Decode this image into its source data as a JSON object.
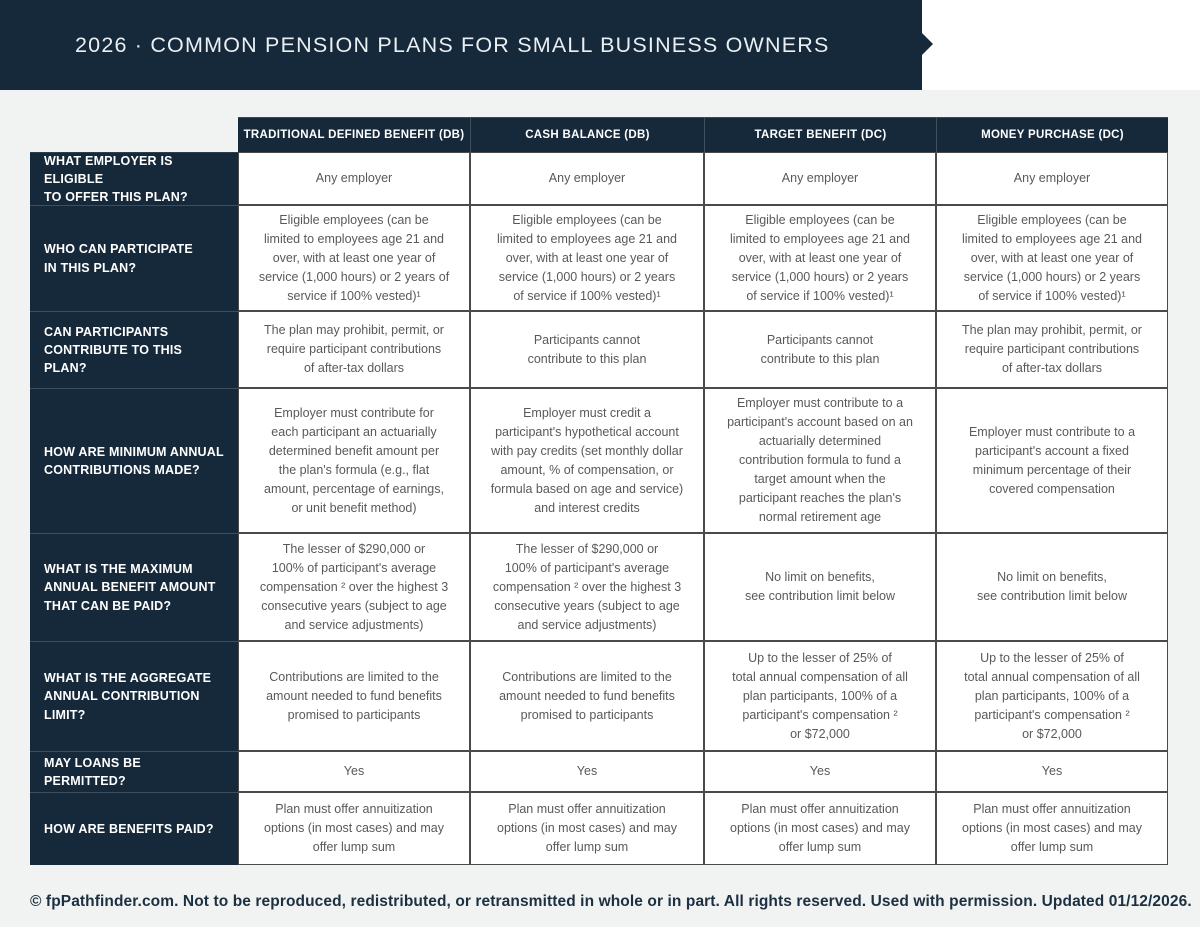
{
  "banner": {
    "title": "2026 · COMMON PENSION PLANS FOR SMALL BUSINESS OWNERS"
  },
  "table": {
    "column_headers": [
      "TRADITIONAL DEFINED BENEFIT (DB)",
      "CASH BALANCE (DB)",
      "TARGET BENEFIT (DC)",
      "MONEY PURCHASE (DC)"
    ],
    "rows": [
      {
        "label": "WHAT EMPLOYER IS ELIGIBLE\nTO OFFER THIS PLAN?",
        "cells": [
          "Any employer",
          "Any employer",
          "Any employer",
          "Any employer"
        ]
      },
      {
        "label": "WHO CAN PARTICIPATE\nIN THIS PLAN?",
        "cells": [
          "Eligible employees (can be\nlimited to employees age 21 and\nover, with at least one year of\nservice (1,000 hours) or 2 years of\nservice if 100% vested)¹",
          "Eligible employees (can be\nlimited to employees age 21 and\nover, with at least one year of\nservice (1,000 hours) or 2 years\nof service if 100% vested)¹",
          "Eligible employees (can be\nlimited to employees age 21 and\nover, with at least one year of\nservice (1,000 hours) or 2 years\nof service if 100% vested)¹",
          "Eligible employees (can be\nlimited to employees age 21 and\nover, with at least one year of\nservice (1,000 hours) or 2 years\nof service if 100% vested)¹"
        ]
      },
      {
        "label": "CAN PARTICIPANTS\nCONTRIBUTE TO THIS PLAN?",
        "cells": [
          "The plan may prohibit, permit, or\nrequire participant contributions\nof after-tax dollars",
          "Participants cannot\ncontribute to this plan",
          "Participants cannot\ncontribute to this plan",
          "The plan may prohibit, permit, or\nrequire participant contributions\nof after-tax dollars"
        ]
      },
      {
        "label": "HOW ARE MINIMUM ANNUAL\nCONTRIBUTIONS MADE?",
        "cells": [
          "Employer must contribute for\neach participant an actuarially\ndetermined benefit amount per\nthe plan's formula (e.g., flat\namount, percentage of earnings,\nor unit benefit method)",
          "Employer must credit a\nparticipant's hypothetical account\nwith pay credits (set monthly dollar\namount, % of compensation, or\nformula based on age and service)\nand interest credits",
          "Employer must contribute to a\nparticipant's account based on an\nactuarially determined\ncontribution formula to fund a\ntarget amount when the\nparticipant reaches the plan's\nnormal retirement age",
          "Employer must contribute to a\nparticipant's account a fixed\nminimum percentage of their\ncovered compensation"
        ]
      },
      {
        "label": "WHAT IS THE MAXIMUM\nANNUAL BENEFIT AMOUNT\nTHAT CAN BE PAID?",
        "cells": [
          "The lesser of $290,000 or\n100% of participant's average\ncompensation ² over the highest 3\nconsecutive years (subject to age\nand service adjustments)",
          "The lesser of $290,000 or\n100% of participant's average\ncompensation ² over the highest 3\nconsecutive years (subject to age\nand service adjustments)",
          "No limit on benefits,\nsee contribution limit below",
          "No limit on benefits,\nsee contribution limit below"
        ]
      },
      {
        "label": "WHAT IS THE AGGREGATE\nANNUAL CONTRIBUTION\nLIMIT?",
        "cells": [
          "Contributions are limited to the\namount needed to fund benefits\npromised to participants",
          "Contributions are limited to the\namount needed to fund benefits\npromised to participants",
          "Up to the lesser of 25% of\ntotal annual compensation of all\nplan participants, 100% of a\nparticipant's compensation ²\nor $72,000",
          "Up to the lesser of 25% of\ntotal annual compensation of all\nplan participants, 100% of a\nparticipant's compensation ²\nor $72,000"
        ]
      },
      {
        "label": "MAY LOANS BE PERMITTED?",
        "cells": [
          "Yes",
          "Yes",
          "Yes",
          "Yes"
        ]
      },
      {
        "label": "HOW ARE BENEFITS PAID?",
        "cells": [
          "Plan must offer annuitization\noptions (in most cases) and may\noffer lump sum",
          "Plan must offer annuitization\noptions (in most cases) and may\noffer lump sum",
          "Plan must offer annuitization\noptions (in most cases) and may\noffer lump sum",
          "Plan must offer annuitization\noptions (in most cases) and may\noffer lump sum"
        ]
      }
    ]
  },
  "footer": {
    "text": "© fpPathfinder.com. Not to be reproduced, redistributed, or retransmitted in whole or in part. All rights reserved. Used with permission. Updated 01/12/2026."
  },
  "colors": {
    "navy": "#16293a",
    "page_background": "#f1f2f2",
    "cell_border": "#4a4a4b",
    "cell_text": "#58595b",
    "footer_text": "#1c3041",
    "white": "#ffffff"
  }
}
